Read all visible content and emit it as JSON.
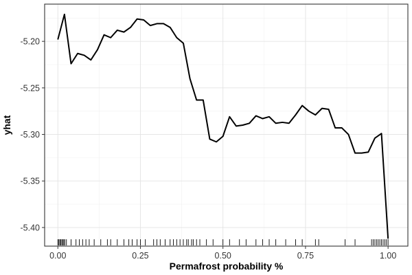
{
  "chart_data": {
    "type": "line",
    "title": "",
    "xlabel": "Permafrost probability %",
    "ylabel": "yhat",
    "xlim": [
      -0.04,
      1.06
    ],
    "ylim": [
      -5.42,
      -5.16
    ],
    "xticks": [
      0.0,
      0.25,
      0.5,
      0.75,
      1.0
    ],
    "xtick_labels": [
      "0.00",
      "0.25",
      "0.50",
      "0.75",
      "1.00"
    ],
    "yticks": [
      -5.2,
      -5.25,
      -5.3,
      -5.35,
      -5.4
    ],
    "ytick_labels": [
      "-5.20",
      "-5.25",
      "-5.30",
      "-5.35",
      "-5.40"
    ],
    "grid": true,
    "line_color": "#000000",
    "series": [
      {
        "name": "yhat",
        "x": [
          0.0,
          0.02,
          0.04,
          0.06,
          0.08,
          0.1,
          0.12,
          0.14,
          0.16,
          0.18,
          0.2,
          0.22,
          0.24,
          0.26,
          0.28,
          0.3,
          0.32,
          0.34,
          0.36,
          0.38,
          0.4,
          0.42,
          0.44,
          0.46,
          0.48,
          0.5,
          0.52,
          0.54,
          0.56,
          0.58,
          0.6,
          0.62,
          0.64,
          0.66,
          0.68,
          0.7,
          0.72,
          0.74,
          0.76,
          0.78,
          0.8,
          0.82,
          0.84,
          0.86,
          0.88,
          0.9,
          0.92,
          0.94,
          0.96,
          0.98,
          1.0
        ],
        "values": [
          -5.198,
          -5.171,
          -5.224,
          -5.213,
          -5.215,
          -5.22,
          -5.209,
          -5.193,
          -5.196,
          -5.188,
          -5.19,
          -5.185,
          -5.176,
          -5.177,
          -5.183,
          -5.181,
          -5.181,
          -5.185,
          -5.196,
          -5.202,
          -5.24,
          -5.263,
          -5.263,
          -5.305,
          -5.308,
          -5.302,
          -5.281,
          -5.291,
          -5.29,
          -5.288,
          -5.28,
          -5.283,
          -5.281,
          -5.288,
          -5.287,
          -5.288,
          -5.279,
          -5.269,
          -5.275,
          -5.279,
          -5.272,
          -5.273,
          -5.293,
          -5.293,
          -5.3,
          -5.32,
          -5.32,
          -5.319,
          -5.304,
          -5.299,
          -5.412
        ]
      }
    ],
    "rug": [
      0.0,
      0.003,
      0.006,
      0.009,
      0.012,
      0.015,
      0.018,
      0.021,
      0.026,
      0.04,
      0.055,
      0.065,
      0.075,
      0.085,
      0.095,
      0.11,
      0.13,
      0.15,
      0.16,
      0.18,
      0.2,
      0.215,
      0.225,
      0.24,
      0.25,
      0.265,
      0.29,
      0.3,
      0.31,
      0.325,
      0.34,
      0.35,
      0.36,
      0.37,
      0.38,
      0.39,
      0.395,
      0.405,
      0.41,
      0.42,
      0.43,
      0.45,
      0.47,
      0.5,
      0.52,
      0.55,
      0.57,
      0.6,
      0.62,
      0.64,
      0.66,
      0.69,
      0.72,
      0.74,
      0.78,
      0.79,
      0.87,
      0.9,
      0.95,
      0.955,
      0.96,
      0.965,
      0.97,
      0.975,
      0.98,
      0.985,
      0.99,
      0.995,
      1.0
    ]
  }
}
